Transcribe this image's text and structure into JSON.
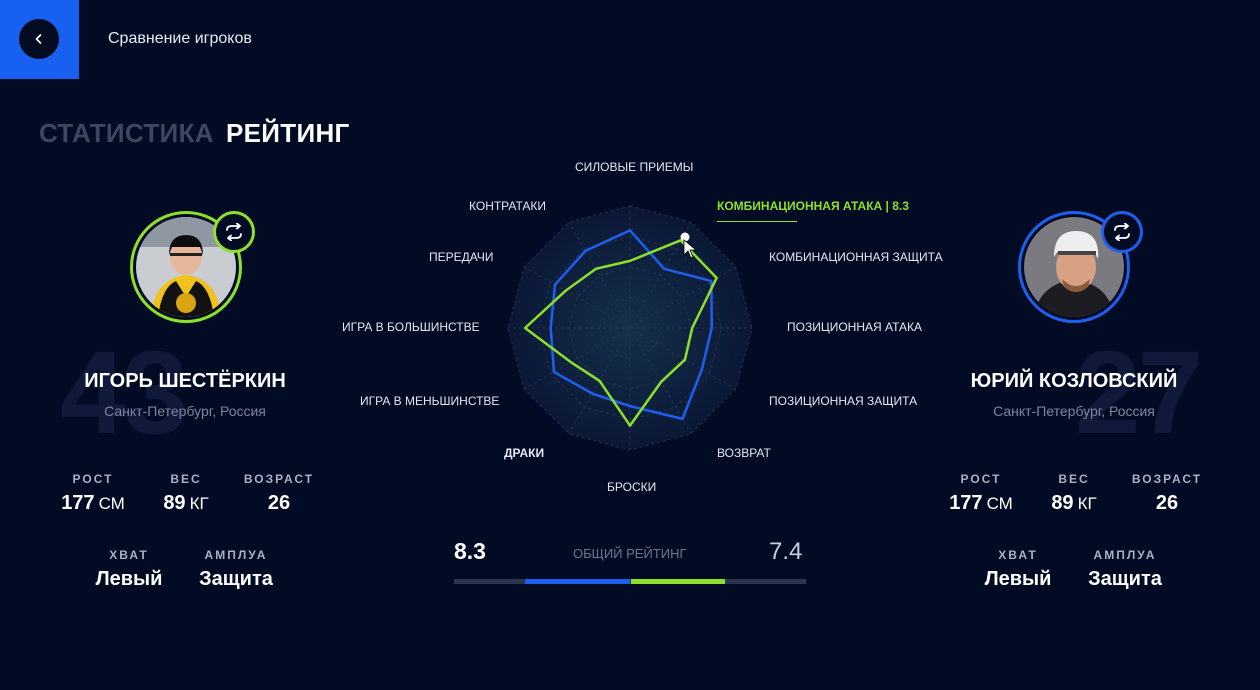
{
  "header": {
    "title": "Сравнение игроков"
  },
  "tabs": [
    {
      "label": "СТАТИСТИКА"
    },
    {
      "label": "РЕЙТИНГ"
    }
  ],
  "colors": {
    "accent": "#1760f0",
    "player1": "#8de02c",
    "player2": "#1e5ff0"
  },
  "players": [
    {
      "number": "43",
      "name": "ИГОРЬ ШЕСТЁРКИН",
      "city": "Санкт-Петербург, Россия",
      "stats": {
        "height_label": "РОСТ",
        "height_value": "177",
        "height_unit": "СМ",
        "weight_label": "ВЕС",
        "weight_value": "89",
        "weight_unit": "КГ",
        "age_label": "ВОЗРАСТ",
        "age_value": "26",
        "grip_label": "ХВАТ",
        "grip_value": "Левый",
        "role_label": "АМПЛУА",
        "role_value": "Защита"
      }
    },
    {
      "number": "27",
      "name": "ЮРИЙ КОЗЛОВСКИЙ",
      "city": "Санкт-Петербург, Россия",
      "stats": {
        "height_label": "РОСТ",
        "height_value": "177",
        "height_unit": "СМ",
        "weight_label": "ВЕС",
        "weight_value": "89",
        "weight_unit": "КГ",
        "age_label": "ВОЗРАСТ",
        "age_value": "26",
        "grip_label": "ХВАТ",
        "grip_value": "Левый",
        "role_label": "АМПЛУА",
        "role_value": "Защита"
      }
    }
  ],
  "radar": {
    "categories": [
      "СИЛОВЫЕ ПРИЕМЫ",
      "КОМБИНАЦИОННАЯ АТАКА | 8.3",
      "КОМБИНАЦИОННАЯ ЗАЩИТА",
      "ПОЗИЦИОННАЯ АТАКА",
      "ПОЗИЦИОННАЯ ЗАЩИТА",
      "ВОЗВРАТ",
      "БРОСКИ",
      "ДРАКИ",
      "ИГРА В МЕНЬШИНСТВЕ",
      "ИГРА В БОЛЬШИНСТВЕ",
      "ПЕРЕДАЧИ",
      "КОНТРАТАКИ"
    ],
    "series": [
      {
        "values": [
          5.5,
          8.3,
          8.2,
          5.1,
          5.2,
          5.1,
          8.0,
          5.0,
          5.6,
          8.6,
          6.1,
          5.6
        ]
      },
      {
        "values": [
          8.0,
          5.6,
          7.7,
          6.7,
          6.8,
          8.6,
          6.4,
          6.2,
          7.2,
          6.5,
          7.1,
          7.3
        ]
      }
    ],
    "max": 10
  },
  "overall": {
    "label": "ОБЩИЙ РЕЙТИНГ",
    "left": "8.3",
    "right": "7.4",
    "left_fraction": 0.83,
    "right_fraction": 0.74
  }
}
